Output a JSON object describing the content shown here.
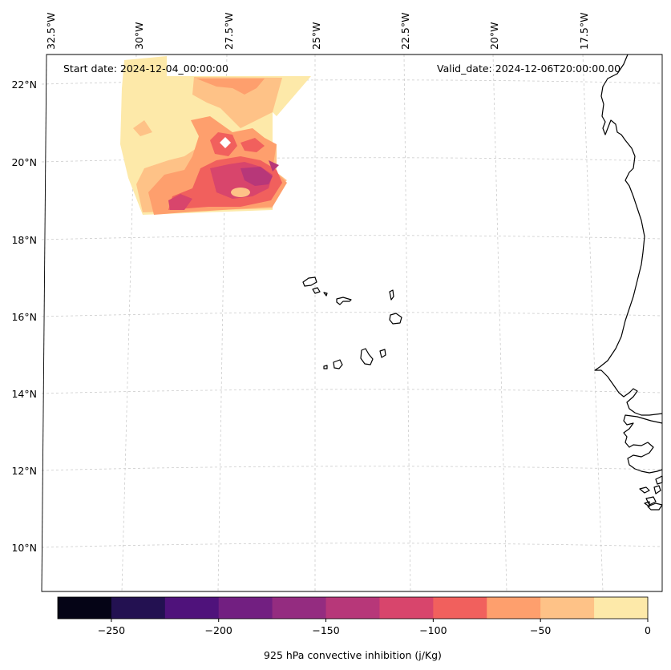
{
  "map": {
    "start_label": "Start date: 2024-12-04_00:00:00",
    "valid_label": "Valid_date: 2024-12-06T20:00:00.00",
    "lon_labels": [
      "32.5°W",
      "30°W",
      "27.5°W",
      "25°W",
      "22.5°W",
      "20°W",
      "17.5°W"
    ],
    "lat_labels": [
      "22°N",
      "20°N",
      "18°N",
      "16°N",
      "14°N",
      "12°N",
      "10°N"
    ],
    "colorbar_label": "925 hPa convective inhibition (j/Kg)"
  },
  "colorbar": {
    "tick_labels": [
      "−250",
      "−200",
      "−150",
      "−100",
      "−50",
      "0"
    ],
    "colors": [
      "#050416",
      "#231151",
      "#4f127b",
      "#721f81",
      "#942c80",
      "#b73779",
      "#d8456c",
      "#f1605d",
      "#fe9f6d",
      "#fec287",
      "#fde9a9"
    ]
  },
  "chart_data": {
    "type": "heatmap",
    "variable": "925 hPa convective inhibition",
    "units": "j/Kg",
    "levels": [
      -275,
      -250,
      -225,
      -200,
      -175,
      -150,
      -125,
      -100,
      -75,
      -50,
      -25,
      0
    ],
    "lon_range": [
      -33,
      -16.5
    ],
    "lat_range": [
      8.9,
      22.8
    ],
    "filled_region": {
      "lon_range": [
        -31.1,
        -25.8
      ],
      "lat_range": [
        18.6,
        22.2
      ],
      "min_value_approx": -150,
      "max_value": 0
    },
    "start_date": "2024-12-04_00:00:00",
    "valid_date": "2024-12-06T20:00:00.00"
  }
}
